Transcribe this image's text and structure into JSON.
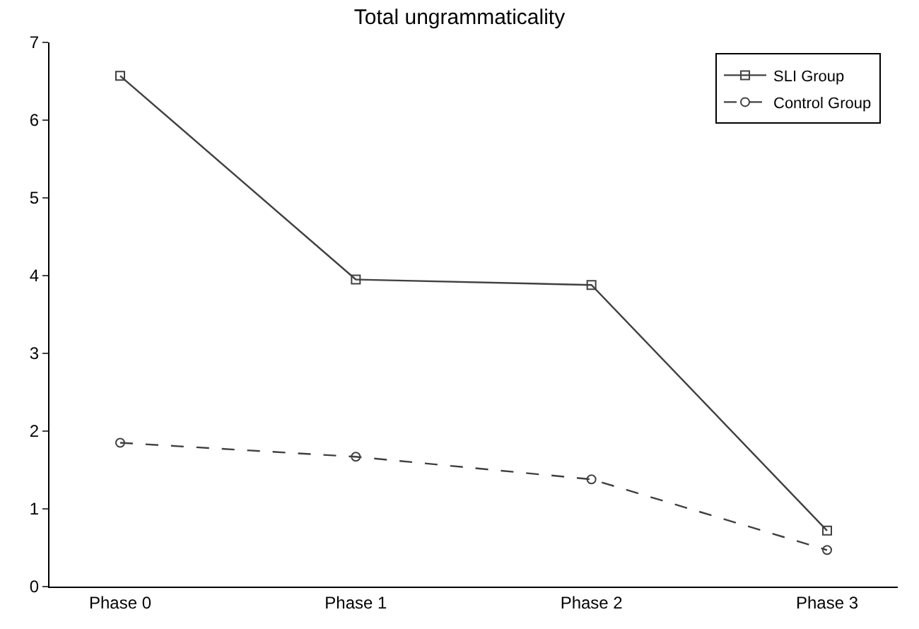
{
  "chart_data": {
    "type": "line",
    "title": "Total ungrammaticality",
    "categories": [
      "Phase 0",
      "Phase 1",
      "Phase 2",
      "Phase 3"
    ],
    "series": [
      {
        "name": "SLI Group",
        "color": "#404040",
        "values": [
          6.57,
          3.95,
          3.88,
          0.72
        ],
        "marker": "square",
        "line_style": "solid"
      },
      {
        "name": "Control Group",
        "color": "#404040",
        "values": [
          1.85,
          1.67,
          1.38,
          0.47
        ],
        "marker": "circle",
        "line_style": "dashed"
      }
    ],
    "ylim": [
      0,
      7
    ],
    "yticks": [
      0,
      1,
      2,
      3,
      4,
      5,
      6,
      7
    ],
    "legend": "top right"
  }
}
